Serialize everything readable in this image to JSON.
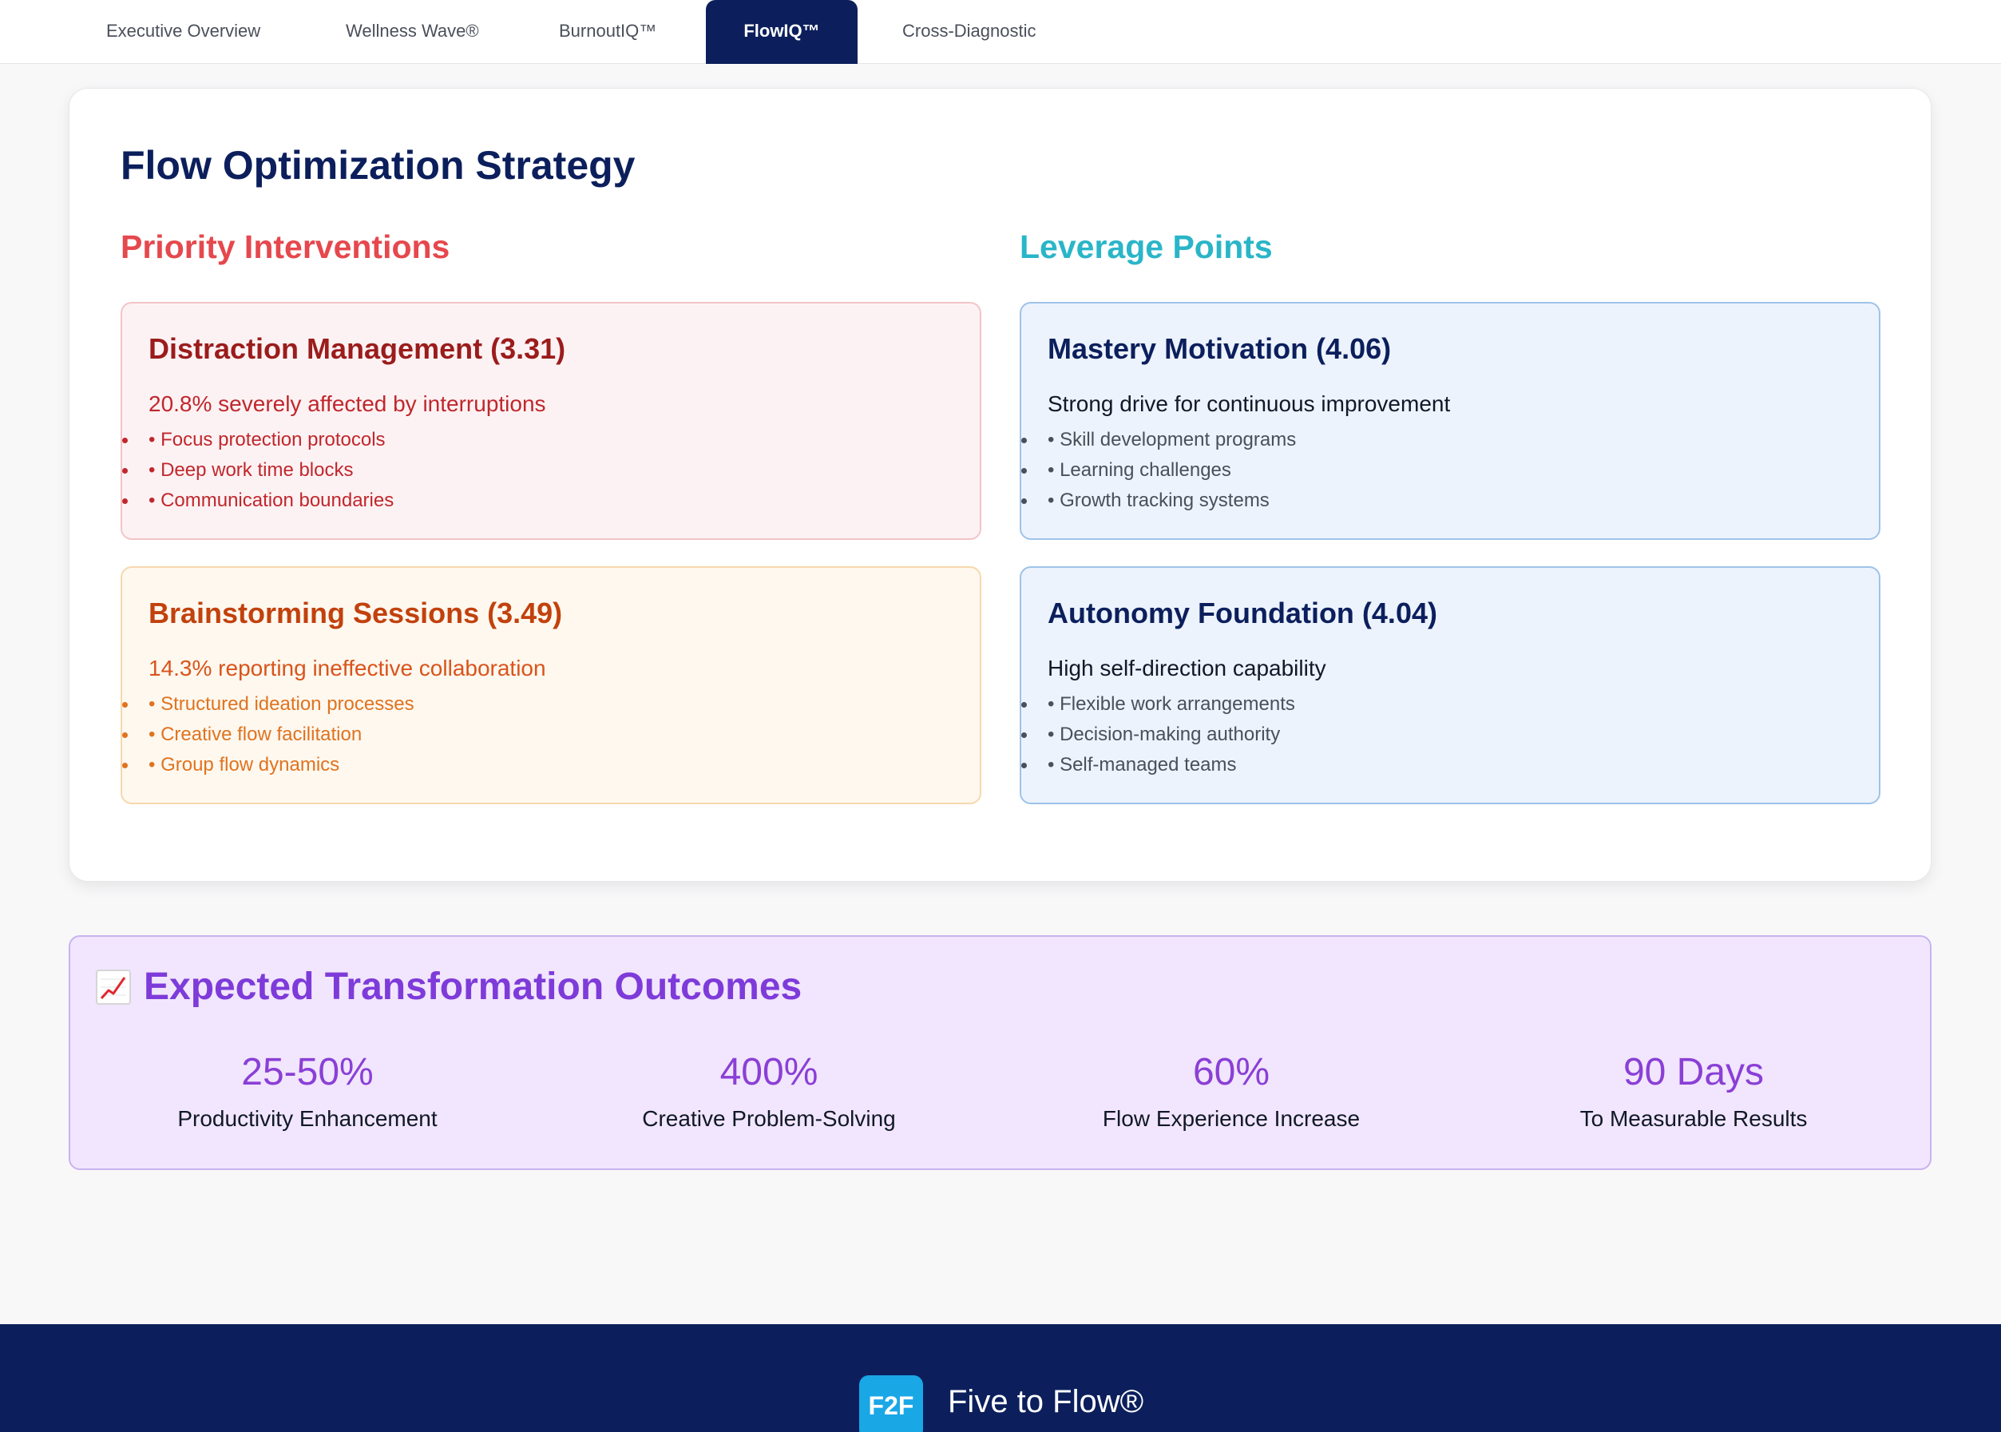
{
  "tabs": [
    {
      "label": "Executive Overview"
    },
    {
      "label": "Wellness Wave®"
    },
    {
      "label": "BurnoutIQ™"
    },
    {
      "label": "FlowIQ™"
    },
    {
      "label": "Cross-Diagnostic"
    }
  ],
  "active_tab": "FlowIQ™",
  "strategy": {
    "title": "Flow Optimization Strategy",
    "priority_title": "Priority Interventions",
    "leverage_title": "Leverage Points",
    "priority": [
      {
        "title": "Distraction Management (3.31)",
        "subtitle": "20.8% severely affected by interruptions",
        "items": [
          "• Focus protection protocols",
          "• Deep work time blocks",
          "• Communication boundaries"
        ]
      },
      {
        "title": "Brainstorming Sessions (3.49)",
        "subtitle": "14.3% reporting ineffective collaboration",
        "items": [
          "• Structured ideation processes",
          "• Creative flow facilitation",
          "• Group flow dynamics"
        ]
      }
    ],
    "leverage": [
      {
        "title": "Mastery Motivation (4.06)",
        "subtitle": "Strong drive for continuous improvement",
        "items": [
          "• Skill development programs",
          "• Learning challenges",
          "• Growth tracking systems"
        ]
      },
      {
        "title": "Autonomy Foundation (4.04)",
        "subtitle": "High self-direction capability",
        "items": [
          "• Flexible work arrangements",
          "• Decision-making authority",
          "• Self-managed teams"
        ]
      }
    ]
  },
  "outcomes": {
    "icon": "chart-increasing-icon",
    "title": "Expected Transformation Outcomes",
    "metrics": [
      {
        "value": "25-50%",
        "label": "Productivity Enhancement"
      },
      {
        "value": "400%",
        "label": "Creative Problem-Solving"
      },
      {
        "value": "60%",
        "label": "Flow Experience Increase"
      },
      {
        "value": "90 Days",
        "label": "To Measurable Results"
      }
    ]
  },
  "footer": {
    "logo_text": "F2F",
    "brand": "Five to Flow®"
  },
  "colors": {
    "navy": "#0c1f5c",
    "priority_red": "#e5484d",
    "leverage_teal": "#2ab5c8",
    "outcome_purple": "#7e3bd9",
    "logo_blue": "#1aa7e6"
  }
}
